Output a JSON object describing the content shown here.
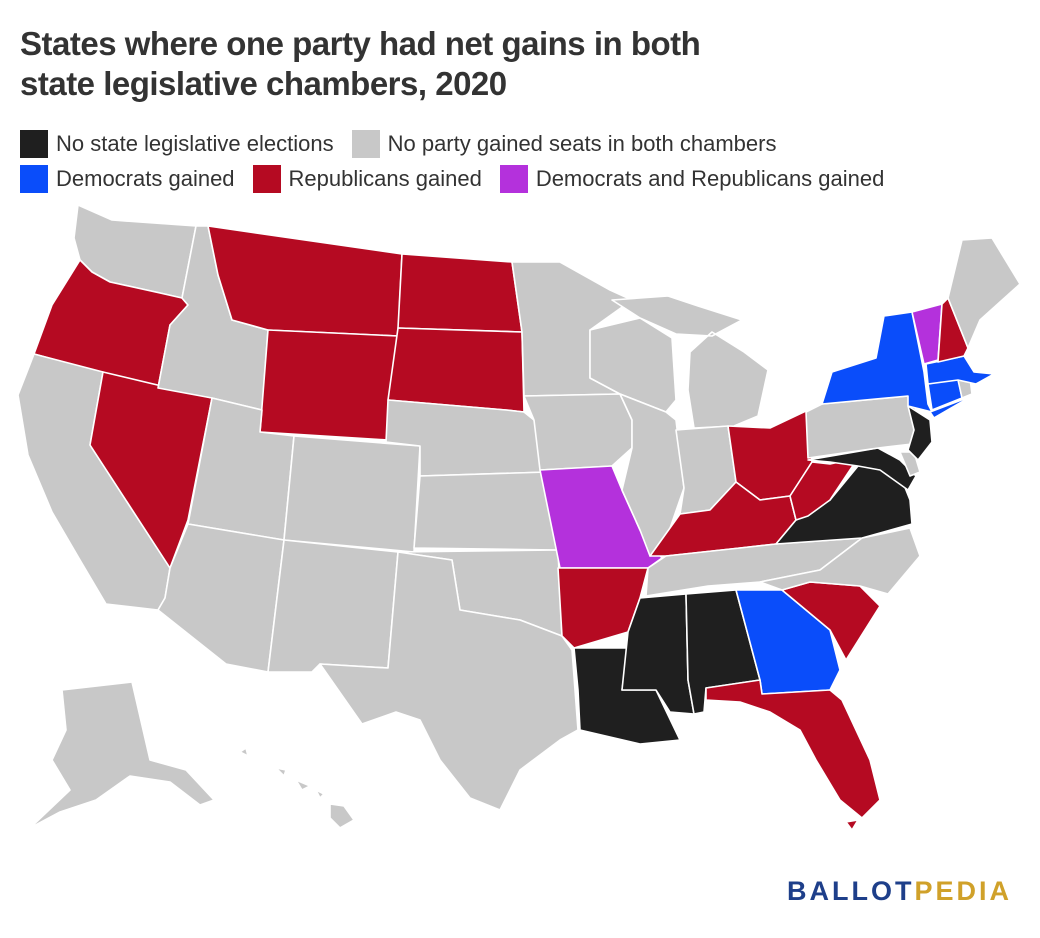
{
  "title": {
    "line1": "States where one party had net gains in both",
    "line2": "state legislative chambers, 2020"
  },
  "legend": [
    {
      "id": "none",
      "label": "No state legislative elections",
      "color": "#1f1f1f"
    },
    {
      "id": "neither",
      "label": "No party gained seats in both chambers",
      "color": "#c8c8c8"
    },
    {
      "id": "dem",
      "label": "Democrats gained",
      "color": "#0a4dfa"
    },
    {
      "id": "rep",
      "label": "Republicans gained",
      "color": "#b50a22"
    },
    {
      "id": "both",
      "label": "Democrats and Republicans gained",
      "color": "#b431dc"
    }
  ],
  "map": {
    "states": [
      {
        "abbr": "WA",
        "category": "neither"
      },
      {
        "abbr": "OR",
        "category": "rep"
      },
      {
        "abbr": "CA",
        "category": "neither"
      },
      {
        "abbr": "NV",
        "category": "rep"
      },
      {
        "abbr": "ID",
        "category": "neither"
      },
      {
        "abbr": "MT",
        "category": "rep"
      },
      {
        "abbr": "WY",
        "category": "rep"
      },
      {
        "abbr": "UT",
        "category": "neither"
      },
      {
        "abbr": "AZ",
        "category": "neither"
      },
      {
        "abbr": "CO",
        "category": "neither"
      },
      {
        "abbr": "NM",
        "category": "neither"
      },
      {
        "abbr": "ND",
        "category": "rep"
      },
      {
        "abbr": "SD",
        "category": "rep"
      },
      {
        "abbr": "NE",
        "category": "neither"
      },
      {
        "abbr": "KS",
        "category": "neither"
      },
      {
        "abbr": "OK",
        "category": "neither"
      },
      {
        "abbr": "TX",
        "category": "neither"
      },
      {
        "abbr": "MN",
        "category": "neither"
      },
      {
        "abbr": "IA",
        "category": "neither"
      },
      {
        "abbr": "MO",
        "category": "both"
      },
      {
        "abbr": "AR",
        "category": "rep"
      },
      {
        "abbr": "LA",
        "category": "none"
      },
      {
        "abbr": "WI",
        "category": "neither"
      },
      {
        "abbr": "IL",
        "category": "neither"
      },
      {
        "abbr": "MI",
        "category": "neither"
      },
      {
        "abbr": "IN",
        "category": "neither"
      },
      {
        "abbr": "OH",
        "category": "rep"
      },
      {
        "abbr": "KY",
        "category": "rep"
      },
      {
        "abbr": "TN",
        "category": "neither"
      },
      {
        "abbr": "MS",
        "category": "none"
      },
      {
        "abbr": "AL",
        "category": "none"
      },
      {
        "abbr": "GA",
        "category": "dem"
      },
      {
        "abbr": "FL",
        "category": "rep"
      },
      {
        "abbr": "SC",
        "category": "rep"
      },
      {
        "abbr": "NC",
        "category": "neither"
      },
      {
        "abbr": "VA",
        "category": "none"
      },
      {
        "abbr": "WV",
        "category": "rep"
      },
      {
        "abbr": "MD",
        "category": "none"
      },
      {
        "abbr": "DE",
        "category": "neither"
      },
      {
        "abbr": "PA",
        "category": "neither"
      },
      {
        "abbr": "NJ",
        "category": "none"
      },
      {
        "abbr": "NY",
        "category": "dem"
      },
      {
        "abbr": "CT",
        "category": "dem"
      },
      {
        "abbr": "RI",
        "category": "neither"
      },
      {
        "abbr": "MA",
        "category": "dem"
      },
      {
        "abbr": "VT",
        "category": "both"
      },
      {
        "abbr": "NH",
        "category": "rep"
      },
      {
        "abbr": "ME",
        "category": "neither"
      },
      {
        "abbr": "AK",
        "category": "neither"
      },
      {
        "abbr": "HI",
        "category": "neither"
      }
    ]
  },
  "logo": {
    "part1": "BALLOT",
    "part2": "PEDIA"
  }
}
